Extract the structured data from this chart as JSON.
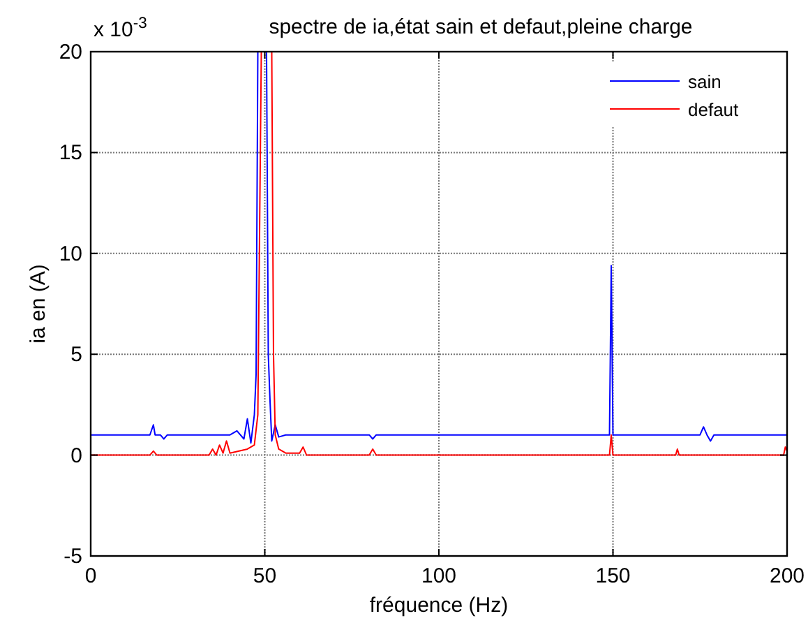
{
  "chart_data": {
    "type": "line",
    "title": "spectre de ia,état sain et defaut,pleine charge",
    "xlabel": "fréquence (Hz)",
    "ylabel": "ia en (A)",
    "annotations": [
      "x 10$^{-3}$"
    ],
    "xlim": [
      0,
      200
    ],
    "xticks": [
      0,
      50,
      100,
      150,
      200
    ],
    "ylim": [
      -5,
      20
    ],
    "yticks": [
      -5,
      0,
      5,
      10,
      15,
      20
    ],
    "grid": true,
    "legend": "top right",
    "line_style": "solid",
    "marker": "none",
    "series": [
      {
        "name": "sain",
        "color": "#0000ff",
        "x": [
          0,
          17,
          18,
          18.5,
          20,
          21,
          22,
          30,
          36,
          40,
          42,
          44,
          45,
          46,
          47,
          47.5,
          48,
          49,
          50.5,
          51,
          51.5,
          52,
          53,
          54,
          56,
          60,
          70,
          80,
          81,
          82,
          100,
          120,
          149,
          149.5,
          150,
          151,
          175,
          176,
          177,
          178,
          179,
          200
        ],
        "values": [
          1,
          1,
          1.5,
          1,
          1,
          0.8,
          1,
          1,
          1,
          1,
          1.2,
          0.8,
          1.8,
          0.6,
          2,
          4,
          20,
          20,
          20,
          5,
          2.7,
          0.7,
          1.5,
          0.9,
          1,
          1,
          1,
          1,
          0.8,
          1,
          1,
          1,
          1,
          9.4,
          1,
          1,
          1,
          1.4,
          1,
          0.7,
          1,
          1
        ]
      },
      {
        "name": "defaut",
        "color": "#ff0000",
        "x": [
          0,
          17,
          18,
          19,
          20,
          34,
          35,
          36,
          37,
          38,
          39,
          40,
          45,
          47,
          48,
          49,
          52,
          52.5,
          53,
          54,
          56,
          60,
          61,
          62,
          80,
          81,
          82,
          149,
          149.5,
          150,
          160,
          168,
          168.5,
          169,
          199,
          199.5,
          200
        ],
        "values": [
          0,
          0,
          0.2,
          0,
          0,
          0,
          0.3,
          0,
          0.5,
          0.1,
          0.7,
          0.1,
          0.3,
          0.5,
          2,
          20,
          20,
          5,
          1,
          0.3,
          0.1,
          0.1,
          0.4,
          0,
          0,
          0.3,
          0,
          0,
          1,
          0,
          0,
          0,
          0.3,
          0,
          0,
          0.4,
          0.2
        ]
      }
    ]
  }
}
